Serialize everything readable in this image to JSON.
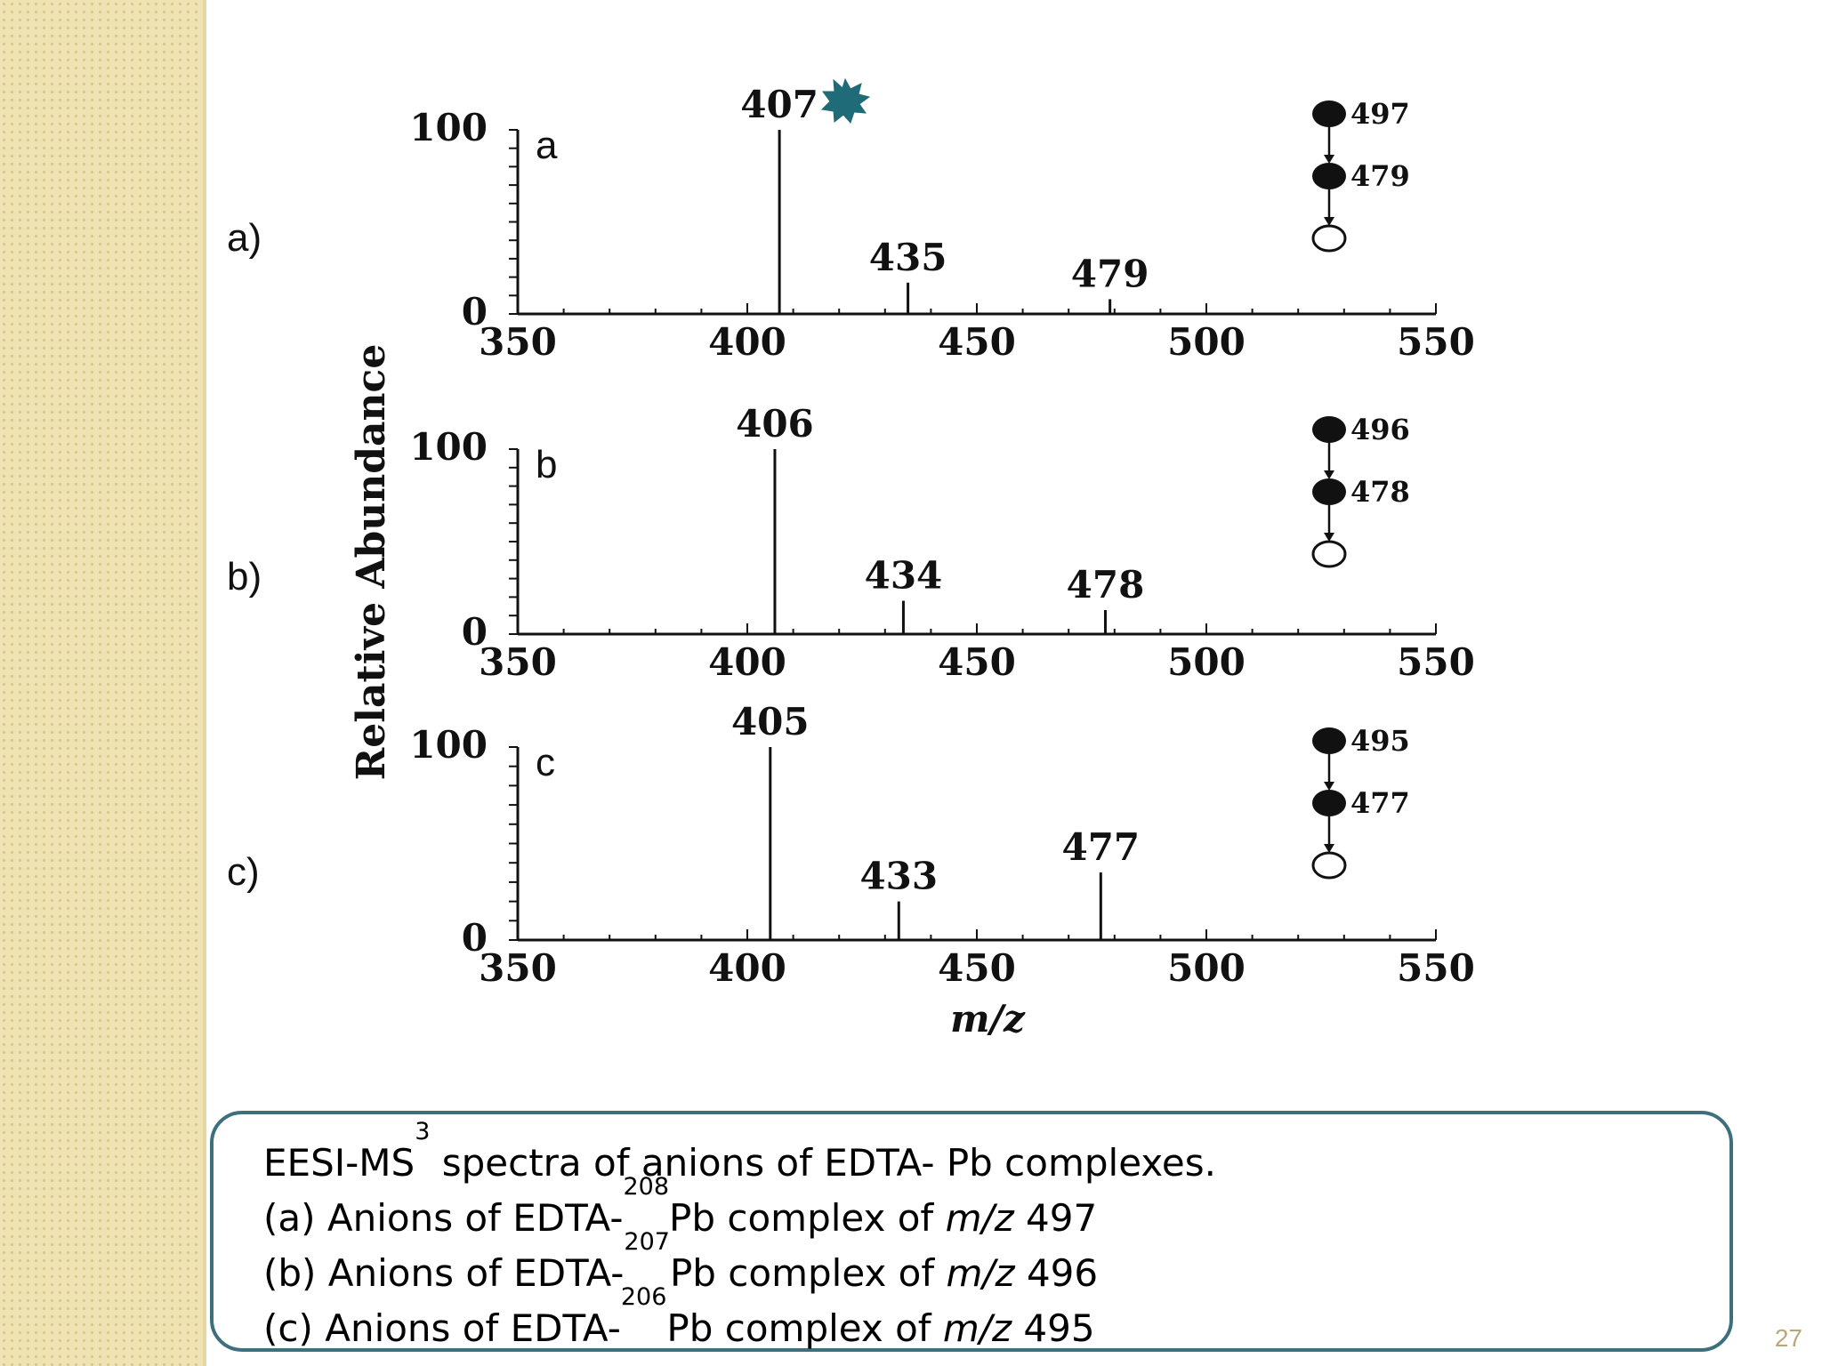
{
  "side_labels": [
    "a)",
    "b)",
    "c)"
  ],
  "y_axis_label": "Relative Abundance",
  "x_axis_label": "m/z",
  "caption": {
    "title_pre": "EESI-MS",
    "title_sup": "3",
    "title_post": " spectra of anions of EDTA- Pb complexes.",
    "items": [
      {
        "pre": "(a)  Anions of EDTA-",
        "sup": "208",
        "mid": "Pb complex of ",
        "mz": "m/z",
        "value": " 497"
      },
      {
        "pre": "(b) Anions of EDTA-",
        "sup": "207",
        "mid": "Pb complex of ",
        "mz": "m/z",
        "value": " 496"
      },
      {
        "pre": "(c) Anions of EDTA-",
        "sup": "206",
        "mid": "Pb complex of ",
        "mz": "m/z",
        "value": " 495"
      }
    ]
  },
  "slide_number": "27",
  "chart_data": [
    {
      "type": "bar",
      "panel": "a",
      "xlim": [
        350,
        550
      ],
      "ylim": [
        0,
        100
      ],
      "xticks": [
        "350",
        "400",
        "450",
        "500",
        "550"
      ],
      "yticks": [
        "0",
        "100"
      ],
      "peaks": [
        {
          "x": 407,
          "y": 100,
          "label": "407"
        },
        {
          "x": 435,
          "y": 17,
          "label": "435"
        },
        {
          "x": 479,
          "y": 8,
          "label": "479"
        }
      ],
      "pathway": [
        "497",
        "479"
      ]
    },
    {
      "type": "bar",
      "panel": "b",
      "xlim": [
        350,
        550
      ],
      "ylim": [
        0,
        100
      ],
      "xticks": [
        "350",
        "400",
        "450",
        "500",
        "550"
      ],
      "yticks": [
        "0",
        "100"
      ],
      "peaks": [
        {
          "x": 406,
          "y": 100,
          "label": "406"
        },
        {
          "x": 434,
          "y": 18,
          "label": "434"
        },
        {
          "x": 478,
          "y": 13,
          "label": "478"
        }
      ],
      "pathway": [
        "496",
        "478"
      ]
    },
    {
      "type": "bar",
      "panel": "c",
      "xlim": [
        350,
        550
      ],
      "ylim": [
        0,
        100
      ],
      "xticks": [
        "350",
        "400",
        "450",
        "500",
        "550"
      ],
      "yticks": [
        "0",
        "100"
      ],
      "peaks": [
        {
          "x": 405,
          "y": 100,
          "label": "405"
        },
        {
          "x": 433,
          "y": 20,
          "label": "433"
        },
        {
          "x": 477,
          "y": 35,
          "label": "477"
        }
      ],
      "pathway": [
        "495",
        "477"
      ]
    }
  ]
}
